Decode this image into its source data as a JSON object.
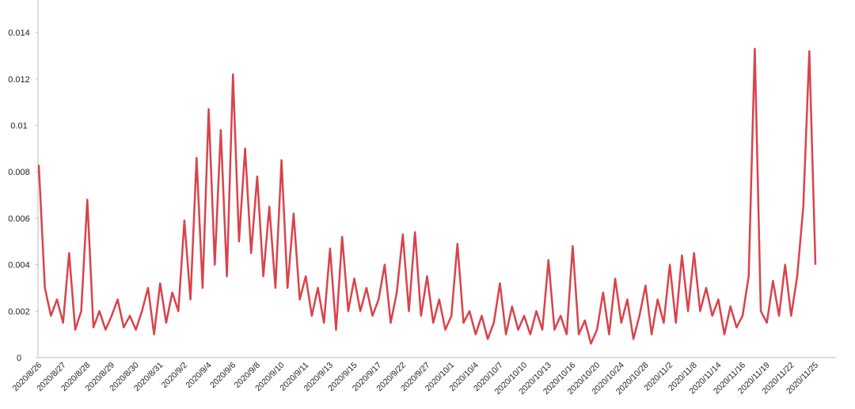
{
  "chart_data": {
    "type": "line",
    "color": "#d9434b",
    "categories": [
      "2020/8/26",
      null,
      null,
      null,
      "2020/8/27",
      null,
      null,
      null,
      "2020/8/28",
      null,
      null,
      null,
      "2020/8/29",
      null,
      null,
      null,
      "2020/8/30",
      null,
      null,
      null,
      "2020/8/31",
      null,
      null,
      null,
      "2020/9/2",
      null,
      null,
      null,
      "2020/9/4",
      null,
      null,
      null,
      "2020/9/6",
      null,
      null,
      null,
      "2020/9/8",
      null,
      null,
      null,
      "2020/9/10",
      null,
      null,
      null,
      "2020/9/11",
      null,
      null,
      null,
      "2020/9/13",
      null,
      null,
      null,
      "2020/9/15",
      null,
      null,
      null,
      "2020/9/17",
      null,
      null,
      null,
      "2020/9/22",
      null,
      null,
      null,
      "2020/9/27",
      null,
      null,
      null,
      "2020/10/1",
      null,
      null,
      null,
      "2020/10/4",
      null,
      null,
      null,
      "2020/10/7",
      null,
      null,
      null,
      "2020/10/10",
      null,
      null,
      null,
      "2020/10/13",
      null,
      null,
      null,
      "2020/10/16",
      null,
      null,
      null,
      "2020/10/20",
      null,
      null,
      null,
      "2020/10/24",
      null,
      null,
      null,
      "2020/10/28",
      null,
      null,
      null,
      "2020/11/2",
      null,
      null,
      null,
      "2020/11/8",
      null,
      null,
      null,
      "2020/11/14",
      null,
      null,
      null,
      "2020/11/16",
      null,
      null,
      null,
      "2020/11/19",
      null,
      null,
      null,
      "2020/11/22",
      null,
      null,
      null,
      "2020/11/25"
    ],
    "values": [
      0.0083,
      0.003,
      0.0018,
      0.0025,
      0.0015,
      0.0045,
      0.0012,
      0.002,
      0.0068,
      0.0013,
      0.002,
      0.0012,
      0.0018,
      0.0025,
      0.0013,
      0.0018,
      0.0012,
      0.002,
      0.003,
      0.001,
      0.0032,
      0.0015,
      0.0028,
      0.002,
      0.0059,
      0.0025,
      0.0086,
      0.003,
      0.0107,
      0.004,
      0.0098,
      0.0035,
      0.0122,
      0.005,
      0.009,
      0.0045,
      0.0078,
      0.0035,
      0.0065,
      0.003,
      0.0085,
      0.003,
      0.0062,
      0.0025,
      0.0035,
      0.0018,
      0.003,
      0.0015,
      0.0047,
      0.0012,
      0.0052,
      0.002,
      0.0034,
      0.002,
      0.003,
      0.0018,
      0.0025,
      0.004,
      0.0015,
      0.0028,
      0.0053,
      0.002,
      0.0054,
      0.0018,
      0.0035,
      0.0015,
      0.0025,
      0.0012,
      0.0018,
      0.0049,
      0.0015,
      0.002,
      0.001,
      0.0018,
      0.0008,
      0.0015,
      0.0032,
      0.001,
      0.0022,
      0.0012,
      0.0018,
      0.001,
      0.002,
      0.0012,
      0.0042,
      0.0012,
      0.0018,
      0.001,
      0.0048,
      0.001,
      0.0016,
      0.0006,
      0.0012,
      0.0028,
      0.001,
      0.0034,
      0.0015,
      0.0025,
      0.0008,
      0.0018,
      0.0031,
      0.001,
      0.0025,
      0.0015,
      0.004,
      0.0015,
      0.0044,
      0.002,
      0.0045,
      0.002,
      0.003,
      0.0018,
      0.0025,
      0.001,
      0.0022,
      0.0013,
      0.0018,
      0.0035,
      0.0133,
      0.002,
      0.0015,
      0.0033,
      0.0018,
      0.004,
      0.0018,
      0.0035,
      0.0065,
      0.0132,
      0.004
    ],
    "ylim": [
      0,
      0.0154
    ],
    "yticks": [
      0,
      0.002,
      0.004,
      0.006,
      0.008,
      0.01,
      0.012,
      0.014
    ]
  }
}
